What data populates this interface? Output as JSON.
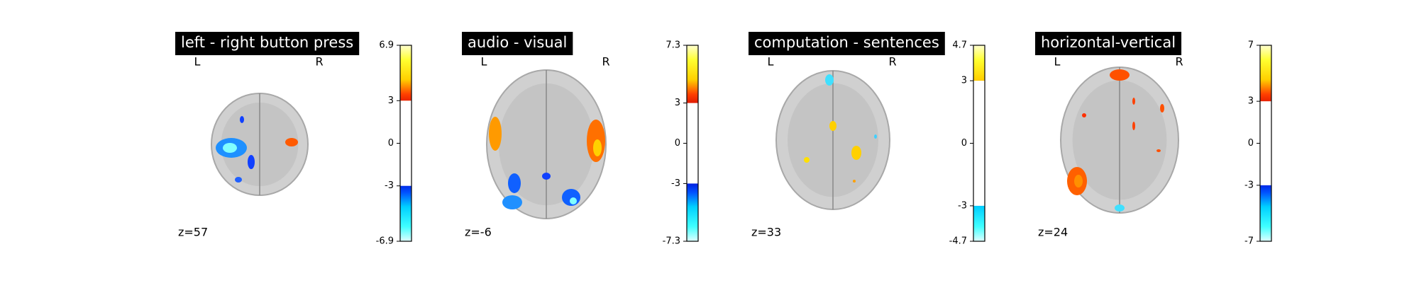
{
  "panels": [
    {
      "title": "left - right button press",
      "left": "L",
      "right": "R",
      "slice": "z=57",
      "colorbar": {
        "lim": [
          -6.9,
          6.9
        ],
        "ticks": [
          -6.9,
          -3,
          0,
          3,
          6.9
        ],
        "threshold": 3
      }
    },
    {
      "title": "audio - visual",
      "left": "L",
      "right": "R",
      "slice": "z=-6",
      "colorbar": {
        "lim": [
          -7.3,
          7.3
        ],
        "ticks": [
          -7.3,
          -3,
          0,
          3,
          7.3
        ],
        "threshold": 3
      }
    },
    {
      "title": "computation - sentences",
      "left": "L",
      "right": "R",
      "slice": "z=33",
      "colorbar": {
        "lim": [
          -4.7,
          4.7
        ],
        "ticks": [
          -4.7,
          -3,
          0,
          3,
          4.7
        ],
        "threshold": 3
      }
    },
    {
      "title": "horizontal-vertical",
      "left": "L",
      "right": "R",
      "slice": "z=24",
      "colorbar": {
        "lim": [
          -7,
          7
        ],
        "ticks": [
          -7,
          -3,
          0,
          3,
          7
        ],
        "threshold": 3
      }
    }
  ]
}
